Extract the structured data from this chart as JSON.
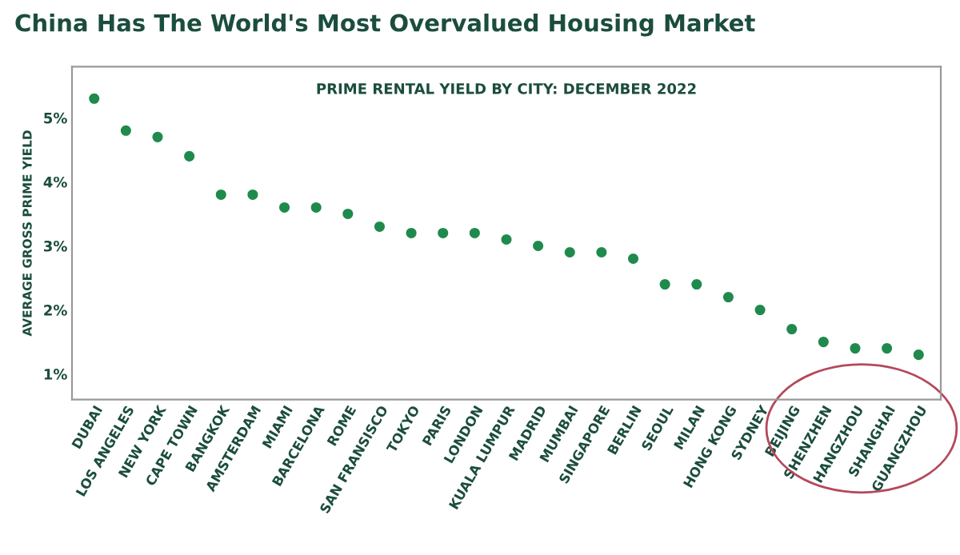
{
  "chart_data": {
    "type": "scatter",
    "title": "China Has The World's Most Overvalued Housing Market",
    "subtitle": "PRIME RENTAL YIELD BY CITY: DECEMBER 2022",
    "ylabel": "AVERAGE GROSS PRIME YIELD",
    "categories": [
      "DUBAI",
      "LOS ANGELES",
      "NEW YORK",
      "CAPE TOWN",
      "BANGKOK",
      "AMSTERDAM",
      "MIAMI",
      "BARCELONA",
      "ROME",
      "SAN FRANSISCO",
      "TOKYO",
      "PARIS",
      "LONDON",
      "KUALA LUMPUR",
      "MADRID",
      "MUMBAI",
      "SINGAPORE",
      "BERLIN",
      "SEOUL",
      "MILAN",
      "HONG KONG",
      "SYDNEY",
      "BEIJING",
      "SHENZHEN",
      "HANGZHOU",
      "SHANGHAI",
      "GUANGZHOU"
    ],
    "series": [
      {
        "color": "#1f8a4c",
        "values": [
          5.3,
          4.8,
          4.7,
          4.4,
          3.8,
          3.8,
          3.6,
          3.6,
          3.5,
          3.3,
          3.2,
          3.2,
          3.2,
          3.1,
          3.0,
          2.9,
          2.9,
          2.8,
          2.4,
          2.4,
          2.2,
          2.0,
          1.7,
          1.5,
          1.4,
          1.4,
          1.3
        ]
      }
    ],
    "ylim": [
      0.6,
      5.8
    ],
    "yticks": [
      {
        "value": 1,
        "label": "1%"
      },
      {
        "value": 2,
        "label": "2%"
      },
      {
        "value": 3,
        "label": "3%"
      },
      {
        "value": 4,
        "label": "4%"
      },
      {
        "value": 5,
        "label": "5%"
      }
    ],
    "grid": false,
    "legend": false,
    "marker": "circle"
  }
}
